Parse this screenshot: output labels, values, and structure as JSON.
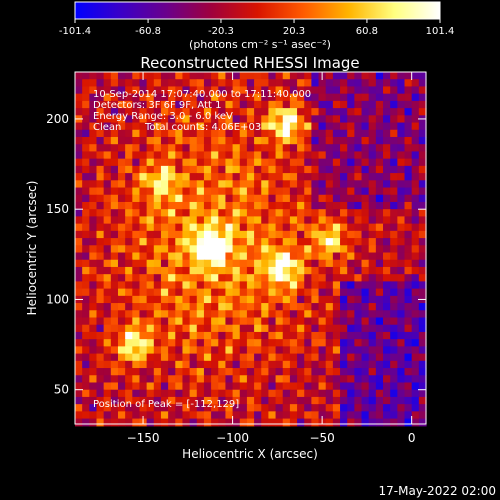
{
  "colorbar": {
    "ticks": [
      "-101.4",
      "-60.8",
      "-20.3",
      "20.3",
      "60.8",
      "101.4"
    ],
    "tick_values": [
      -101.4,
      -60.8,
      -20.3,
      20.3,
      60.8,
      101.4
    ],
    "unit_label": "(photons cm⁻² s⁻¹ asec⁻²)",
    "colormap": [
      "#0000ff",
      "#3a00c8",
      "#6a008c",
      "#a0003c",
      "#d81400",
      "#ff5a00",
      "#ffb400",
      "#ffff80",
      "#ffffff"
    ]
  },
  "annotations": {
    "time_range": "10-Sep-2014 17:07:40.000 to 17:11:40.000",
    "detectors": "Detectors: 3F 6F 9F, Att 1",
    "energy_range": "Energy Range: 3.0 - 6.0 keV",
    "clean": "Clean",
    "total_counts": "Total counts: 4.06E+03",
    "peak": "Position of Peak = [-112,129]"
  },
  "footer_timestamp": "17-May-2022 02:00",
  "chart_data": {
    "type": "heatmap",
    "title": "Reconstructed RHESSI Image",
    "xlabel": "Heliocentric X (arcsec)",
    "ylabel": "Heliocentric Y (arcsec)",
    "xlim": [
      -188,
      8
    ],
    "ylim": [
      31,
      226
    ],
    "x_ticks": [
      -150,
      -100,
      -50,
      0
    ],
    "y_ticks": [
      50,
      100,
      150,
      200
    ],
    "x_tick_labels": [
      "−150",
      "−100",
      "−50",
      "0"
    ],
    "y_tick_labels": [
      "50",
      "100",
      "150",
      "200"
    ],
    "peak_position": [
      -112,
      129
    ],
    "color_range": [
      -101.4,
      101.4
    ],
    "sources": [
      {
        "x": -112,
        "y": 129,
        "peak": 101.4
      },
      {
        "x": -70,
        "y": 197,
        "peak": 90
      },
      {
        "x": -72,
        "y": 117,
        "peak": 80
      },
      {
        "x": -155,
        "y": 75,
        "peak": 70
      },
      {
        "x": -45,
        "y": 133,
        "peak": 60
      },
      {
        "x": -140,
        "y": 165,
        "peak": 50
      }
    ]
  }
}
